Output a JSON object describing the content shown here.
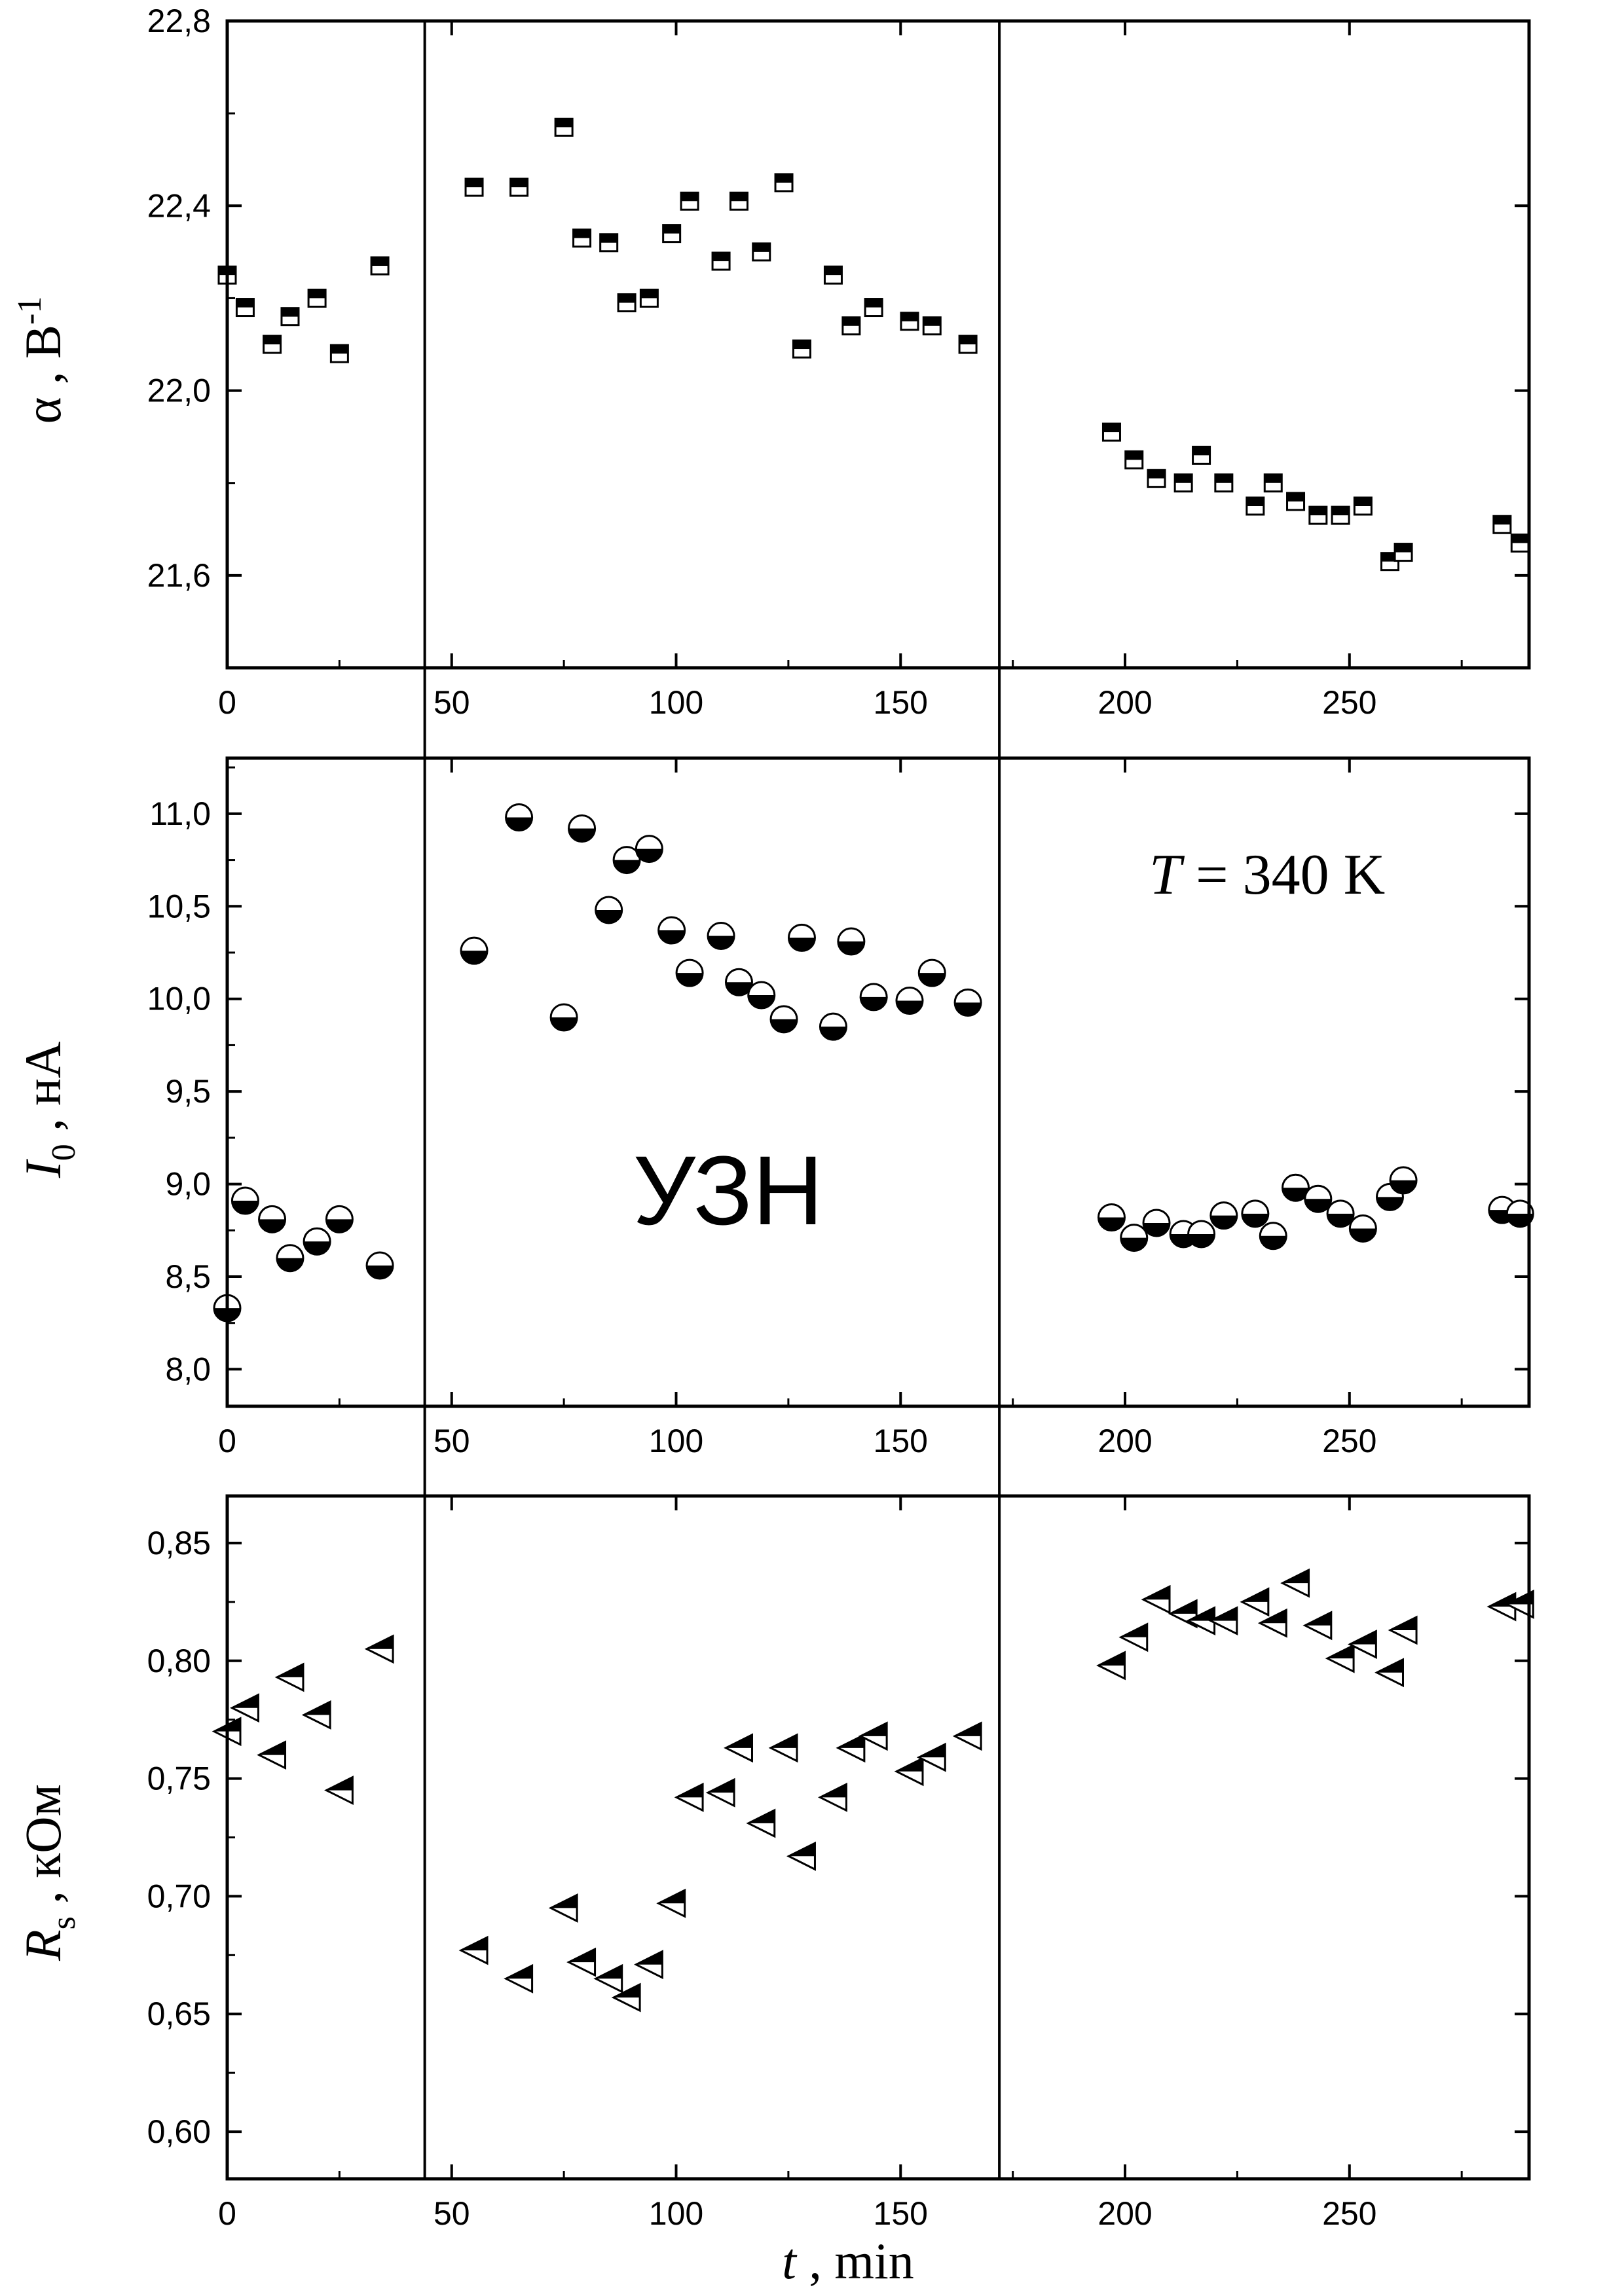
{
  "chart_data": [
    {
      "type": "scatter",
      "panel": "top",
      "ylabel_symbol": "α",
      "ylabel_sep": " , ",
      "ylabel_unit": "В",
      "ylabel_sup": "-1",
      "xlim": [
        0,
        290
      ],
      "ylim": [
        21.4,
        22.8
      ],
      "xticks": [
        0,
        50,
        100,
        150,
        200,
        250
      ],
      "xtick_labels": [
        "0",
        "50",
        "100",
        "150",
        "200",
        "250"
      ],
      "yticks": [
        21.6,
        22.0,
        22.4,
        22.8
      ],
      "ytick_labels": [
        "21,6",
        "22,0",
        "22,4",
        "22,8"
      ],
      "marker": "half-filled-square",
      "series": [
        {
          "x": [
            0,
            4,
            10,
            14,
            20,
            25,
            34,
            55,
            65,
            75,
            79,
            85,
            89,
            94,
            99,
            103,
            110,
            114,
            119,
            124,
            128,
            135,
            139,
            144,
            152,
            157,
            165,
            197,
            202,
            207,
            213,
            217,
            222,
            229,
            233,
            238,
            243,
            248,
            253,
            259,
            262,
            284,
            288
          ],
          "y": [
            22.25,
            22.18,
            22.1,
            22.16,
            22.2,
            22.08,
            22.27,
            22.44,
            22.44,
            22.57,
            22.33,
            22.32,
            22.19,
            22.2,
            22.34,
            22.41,
            22.28,
            22.41,
            22.3,
            22.45,
            22.09,
            22.25,
            22.14,
            22.18,
            22.15,
            22.14,
            22.1,
            21.91,
            21.85,
            21.81,
            21.8,
            21.86,
            21.8,
            21.75,
            21.8,
            21.76,
            21.73,
            21.73,
            21.75,
            21.63,
            21.65,
            21.71,
            21.67
          ]
        }
      ]
    },
    {
      "type": "scatter",
      "panel": "middle",
      "ylabel_symbol": "I",
      "ylabel_sub": "0",
      "ylabel_unit": " , нА",
      "xlim": [
        0,
        290
      ],
      "ylim": [
        7.8,
        11.3
      ],
      "xticks": [
        0,
        50,
        100,
        150,
        200,
        250
      ],
      "xtick_labels": [
        "0",
        "50",
        "100",
        "150",
        "200",
        "250"
      ],
      "yticks": [
        8.0,
        8.5,
        9.0,
        9.5,
        10.0,
        10.5,
        11.0
      ],
      "ytick_labels": [
        "8,0",
        "8,5",
        "9,0",
        "9,5",
        "10,0",
        "10,5",
        "11,0"
      ],
      "marker": "half-filled-circle",
      "series": [
        {
          "x": [
            0,
            4,
            10,
            14,
            20,
            25,
            34,
            55,
            65,
            75,
            79,
            85,
            89,
            94,
            99,
            103,
            110,
            114,
            119,
            124,
            128,
            135,
            139,
            144,
            152,
            157,
            165,
            197,
            202,
            207,
            213,
            217,
            222,
            229,
            233,
            238,
            243,
            248,
            253,
            259,
            262,
            284,
            288
          ],
          "y": [
            8.33,
            8.91,
            8.81,
            8.6,
            8.69,
            8.81,
            8.56,
            10.26,
            10.98,
            9.9,
            10.92,
            10.48,
            10.75,
            10.81,
            10.37,
            10.14,
            10.34,
            10.09,
            10.02,
            9.89,
            10.33,
            9.85,
            10.31,
            10.01,
            9.99,
            10.14,
            9.98,
            8.82,
            8.71,
            8.79,
            8.73,
            8.73,
            8.83,
            8.84,
            8.72,
            8.98,
            8.92,
            8.84,
            8.76,
            8.93,
            9.02,
            8.86,
            8.84
          ]
        }
      ],
      "annotations": {
        "temperature_symbol": "T",
        "temperature_value": " = 340 K",
        "treatment": "УЗН"
      }
    },
    {
      "type": "scatter",
      "panel": "bottom",
      "ylabel_symbol": "R",
      "ylabel_sub": "s",
      "ylabel_unit": " , кОм",
      "xlabel_symbol": "t",
      "xlabel_unit": " , min",
      "xlim": [
        0,
        290
      ],
      "ylim": [
        0.58,
        0.87
      ],
      "xticks": [
        0,
        50,
        100,
        150,
        200,
        250
      ],
      "xtick_labels": [
        "0",
        "50",
        "100",
        "150",
        "200",
        "250"
      ],
      "yticks": [
        0.6,
        0.65,
        0.7,
        0.75,
        0.8,
        0.85
      ],
      "ytick_labels": [
        "0,60",
        "0,65",
        "0,70",
        "0,75",
        "0,80",
        "0,85"
      ],
      "marker": "half-filled-left-triangle",
      "series": [
        {
          "x": [
            0,
            4,
            10,
            14,
            20,
            25,
            34,
            55,
            65,
            75,
            79,
            85,
            89,
            94,
            99,
            103,
            110,
            114,
            119,
            124,
            128,
            135,
            139,
            144,
            152,
            157,
            165,
            197,
            202,
            207,
            213,
            217,
            222,
            229,
            233,
            238,
            243,
            248,
            253,
            259,
            262,
            284,
            288
          ],
          "y": [
            0.77,
            0.78,
            0.76,
            0.793,
            0.777,
            0.745,
            0.805,
            0.677,
            0.665,
            0.695,
            0.672,
            0.665,
            0.657,
            0.671,
            0.697,
            0.742,
            0.744,
            0.763,
            0.731,
            0.763,
            0.717,
            0.742,
            0.763,
            0.768,
            0.753,
            0.759,
            0.768,
            0.798,
            0.81,
            0.826,
            0.82,
            0.817,
            0.817,
            0.825,
            0.816,
            0.833,
            0.815,
            0.801,
            0.807,
            0.795,
            0.813,
            0.823,
            0.824
          ]
        }
      ]
    }
  ],
  "vertical_lines_x": [
    44,
    172
  ]
}
